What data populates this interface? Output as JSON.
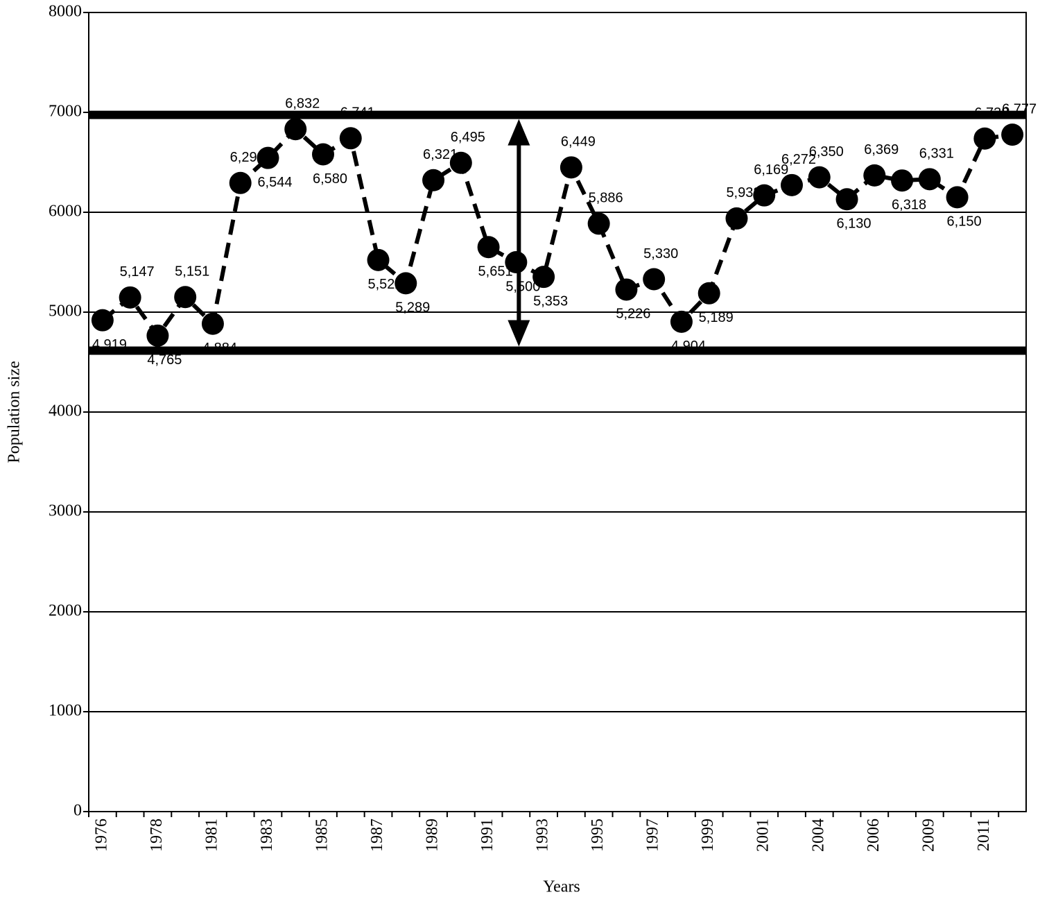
{
  "chart_data": {
    "type": "line",
    "x_label": "Years",
    "y_label": "Population size",
    "categories": [
      "1976",
      null,
      "1978",
      null,
      "1981",
      null,
      "1983",
      null,
      "1985",
      null,
      "1987",
      null,
      "1989",
      null,
      "1991",
      null,
      "1993",
      null,
      "1995",
      null,
      "1997",
      null,
      "1999",
      null,
      "2001",
      null,
      "2004",
      null,
      "2006",
      null,
      "2009",
      null,
      "2011",
      null
    ],
    "series": [
      {
        "name": "Population size",
        "color": "#000000",
        "values": [
          4919,
          5147,
          4765,
          5151,
          4884,
          6293,
          6544,
          6832,
          6580,
          6741,
          5522,
          5289,
          6321,
          6495,
          5651,
          5500,
          5353,
          6449,
          5886,
          5226,
          5330,
          4904,
          5189,
          5938,
          6169,
          6272,
          6350,
          6130,
          6369,
          6318,
          6331,
          6150,
          6738,
          6777
        ],
        "value_labels": [
          "4,919",
          "5,147",
          "4,765",
          "5,151",
          "4,884",
          "6,293",
          "6,544",
          "6,832",
          "6,580",
          "6,741",
          "5,522",
          "5,289",
          "6,321",
          "6,495",
          "5,651",
          "5,500",
          "5,353",
          "6,449",
          "5,886",
          "5,226",
          "5,330",
          "4,904",
          "5,189",
          "5,938",
          "6,169",
          "6,272",
          "6,350",
          "6,130",
          "6,369",
          "6,318",
          "6,331",
          "6,150",
          "6,738",
          "6,777"
        ]
      }
    ],
    "ylim": [
      0,
      8000
    ],
    "yticks": [
      0,
      1000,
      2000,
      3000,
      4000,
      5000,
      6000,
      7000,
      8000
    ],
    "grid": true,
    "reference_lines": [
      6975,
      4615
    ]
  }
}
